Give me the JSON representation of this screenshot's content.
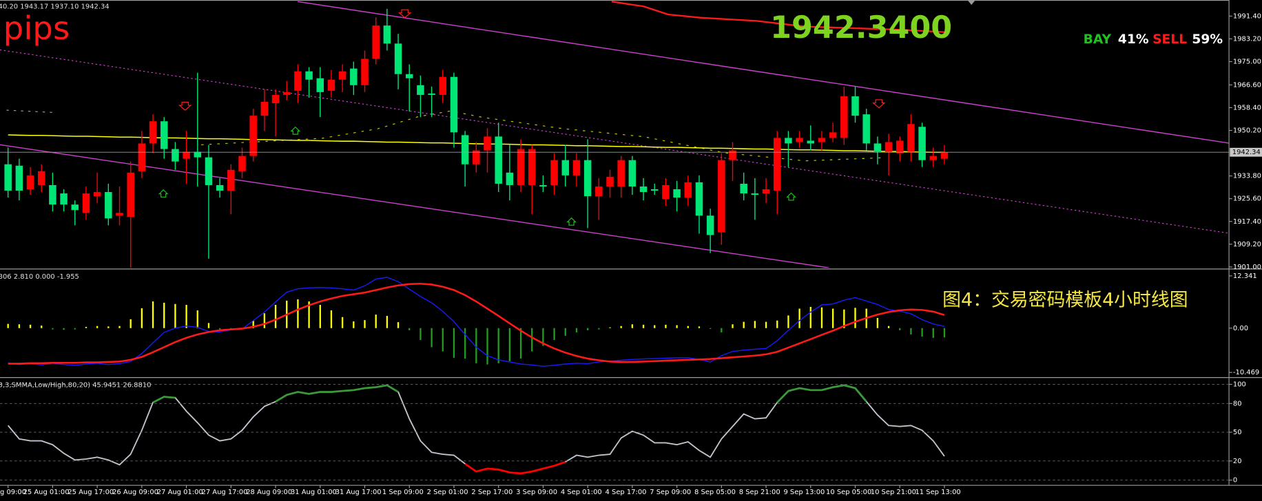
{
  "chart_data": [
    {
      "type": "candlestick",
      "title": "40.20 1943.17 1937.10 1942.34",
      "categories": [
        "g 09:00",
        null,
        null,
        null,
        "25 Aug 01:00",
        null,
        null,
        null,
        "25 Aug 17:00",
        null,
        null,
        null,
        "26 Aug 09:00",
        null,
        null,
        null,
        "27 Aug 01:00",
        null,
        null,
        null,
        "27 Aug 17:00",
        null,
        null,
        null,
        "28 Aug 09:00",
        null,
        null,
        null,
        "31 Aug 01:00",
        null,
        null,
        null,
        "31 Aug 17:00",
        null,
        null,
        null,
        "1 Sep 09:00",
        null,
        null,
        null,
        "2 Sep 01:00",
        null,
        null,
        null,
        "2 Sep 17:00",
        null,
        null,
        null,
        "3 Sep 09:00",
        null,
        null,
        null,
        "4 Sep 01:00",
        null,
        null,
        null,
        "4 Sep 17:00",
        null,
        null,
        null,
        "7 Sep 09:00",
        null,
        null,
        null,
        "8 Sep 05:00",
        null,
        null,
        null,
        "8 Sep 21:00",
        null,
        null,
        null,
        "9 Sep 13:00",
        null,
        null,
        null,
        "10 Sep 05:00",
        null,
        null,
        null,
        "10 Sep 21:00",
        null,
        null,
        null,
        "11 Sep 13:00"
      ],
      "open": [
        1938,
        1937.5,
        1929,
        1930.5,
        1930.5,
        1927.5,
        1923.5,
        1920.5,
        1926.5,
        1928,
        1919.5,
        1919,
        1935.5,
        1945.5,
        1953.5,
        1943.5,
        1940,
        1942.5,
        1940.5,
        1930.5,
        1928.5,
        1935.5,
        1941,
        1955.5,
        1960,
        1963,
        1964.5,
        1971.5,
        1969,
        1964.5,
        1968.5,
        1972.5,
        1966.5,
        1976,
        1988,
        1981.5,
        1970.5,
        1966.5,
        1963.5,
        1963,
        1969.5,
        1948.5,
        1938,
        1943,
        1948,
        1935,
        1930.5,
        1930.5,
        1930.5,
        1930.5,
        1939.5,
        1934,
        1939.5,
        1926.5,
        1930,
        1930,
        1939.5,
        1930,
        1929,
        1925.5,
        1929,
        1926,
        1931.5,
        1919.5,
        1913.5,
        1939.5,
        1931,
        1927.5,
        1927.5,
        1928.5,
        1947.5,
        1946,
        1946.5,
        1946,
        1947.5,
        1947.5,
        1962.5,
        1956,
        1945.5,
        1942.5,
        1942,
        1942.5,
        1951.5,
        1939.5,
        1940
      ],
      "high": [
        1944,
        1940,
        1937,
        1938,
        1935,
        1929,
        1925,
        1930,
        1935,
        1931,
        1930,
        1939,
        1950,
        1956,
        1955,
        1946,
        1950,
        1971,
        1945,
        1933,
        1938,
        1944,
        1958,
        1965,
        1965,
        1968,
        1974,
        1973,
        1973,
        1972,
        1974,
        1975,
        1979,
        1991,
        1994,
        1985,
        1974,
        1970,
        1966,
        1972,
        1971,
        1950,
        1946,
        1951,
        1953,
        1945,
        1947,
        1945,
        1934,
        1942,
        1945,
        1942,
        1947,
        1933,
        1936,
        1941,
        1941,
        1933,
        1931,
        1933,
        1932,
        1934,
        1934,
        1922,
        1942,
        1946,
        1935,
        1933,
        1933,
        1950,
        1950,
        1950,
        1952,
        1950,
        1953,
        1966,
        1966,
        1958,
        1948,
        1949,
        1948,
        1956,
        1953,
        1944,
        1945
      ],
      "low": [
        1926,
        1925,
        1927,
        1928,
        1921,
        1921,
        1916,
        1918,
        1924,
        1916,
        1916,
        1897,
        1933,
        1942,
        1940,
        1936,
        1931,
        1930,
        1904,
        1926,
        1920,
        1933,
        1939,
        1950,
        1948,
        1961,
        1960,
        1962,
        1955,
        1962,
        1964,
        1963,
        1964,
        1974,
        1979,
        1965,
        1957,
        1955,
        1955,
        1960,
        1944,
        1930,
        1935,
        1935,
        1928,
        1925,
        1928,
        1920,
        1928,
        1927,
        1930,
        1930,
        1915,
        1918,
        1926,
        1926,
        1927,
        1925,
        1927,
        1923,
        1921,
        1923,
        1913,
        1906,
        1909,
        1932,
        1925,
        1918,
        1924,
        1920,
        1937,
        1944,
        1943,
        1943,
        1946,
        1945,
        1953,
        1943,
        1938,
        1934,
        1939,
        1939,
        1937,
        1937,
        1938
      ],
      "close": [
        1928.5,
        1928.5,
        1934,
        1935.5,
        1923.5,
        1923.5,
        1921.5,
        1927.5,
        1928,
        1918.5,
        1920.5,
        1935,
        1945.5,
        1953.5,
        1943.5,
        1939,
        1942.5,
        1940.5,
        1930.5,
        1928.5,
        1936,
        1941,
        1955.5,
        1960.5,
        1963,
        1964,
        1971.5,
        1968.5,
        1964,
        1968.5,
        1971.5,
        1966.5,
        1976,
        1988,
        1981.5,
        1970.5,
        1969,
        1963,
        1963,
        1969.5,
        1949.5,
        1938,
        1943,
        1948,
        1931,
        1930.5,
        1943.5,
        1943.5,
        1930,
        1939.5,
        1934,
        1939.5,
        1926.5,
        1930,
        1933.5,
        1939.5,
        1930,
        1928,
        1928.5,
        1930.5,
        1926,
        1931.5,
        1919.5,
        1912.5,
        1939.5,
        1943,
        1927.5,
        1927,
        1929,
        1947.5,
        1945.5,
        1947.5,
        1945.5,
        1947.5,
        1949.5,
        1962.5,
        1955.5,
        1945.5,
        1942.5,
        1946,
        1946.5,
        1952.5,
        1939.5,
        1941,
        1942.34
      ],
      "up_color": "#ff0000",
      "down_color": "#00e676",
      "ma": {
        "color": "#ffff00",
        "values": [
          1948.6,
          1948.5,
          1948.4,
          1948.4,
          1948.3,
          1948.2,
          1948.1,
          1948.1,
          1948.0,
          1947.9,
          1947.8,
          1947.8,
          1947.7,
          1947.6,
          1947.5,
          1947.5,
          1947.4,
          1947.3,
          1947.2,
          1947.2,
          1947.1,
          1947.0,
          1946.9,
          1946.9,
          1946.8,
          1946.7,
          1946.6,
          1946.6,
          1946.5,
          1946.4,
          1946.3,
          1946.3,
          1946.2,
          1946.1,
          1946.0,
          1946.0,
          1945.9,
          1945.8,
          1945.7,
          1945.7,
          1945.6,
          1945.5,
          1945.4,
          1945.3,
          1945.3,
          1945.2,
          1945.1,
          1945.0,
          1945.0,
          1944.9,
          1944.8,
          1944.7,
          1944.7,
          1944.6,
          1944.5,
          1944.4,
          1944.4,
          1944.3,
          1944.2,
          1944.1,
          1944.1,
          1944.0,
          1943.9,
          1943.8,
          1943.8,
          1943.7,
          1943.6,
          1943.5,
          1943.5,
          1943.4,
          1943.3,
          1943.2,
          1943.2,
          1943.1,
          1943.0,
          1942.9,
          1942.9,
          1942.8,
          1942.7,
          1942.6,
          1942.6,
          1942.5,
          1942.4,
          1942.3,
          1942.3
        ]
      },
      "last_price": 1942.34,
      "ylim": [
        1900.7,
        1997.2
      ],
      "yticks": [
        {
          "value": 1991.4,
          "label": "1991.40"
        },
        {
          "value": 1983.2,
          "label": "1983.20"
        },
        {
          "value": 1975,
          "label": "1975.00"
        },
        {
          "value": 1966.6,
          "label": "1966.60"
        },
        {
          "value": 1958.4,
          "label": "1958.40"
        },
        {
          "value": 1950.2,
          "label": "1950.20"
        },
        {
          "value": 1933.8,
          "label": "1933.80"
        },
        {
          "value": 1925.6,
          "label": "1925.60"
        },
        {
          "value": 1917.4,
          "label": "1917.40"
        },
        {
          "value": 1909.2,
          "label": "1909.20"
        },
        {
          "value": 1901,
          "label": "1901.00"
        }
      ],
      "annotations": {
        "pips": "pips",
        "price": "1942.3400",
        "buy_label": "BAY",
        "buy_pct": "41%",
        "sell_label": "SELL",
        "sell_pct": "59%"
      }
    },
    {
      "type": "macd",
      "title": "806 2.810 0.000 -1.955",
      "caption": "图4：交易密码模板4小时线图",
      "histogram": {
        "pos_color": "#ffff00",
        "neg_color": "#1f9d1f",
        "values": [
          1.0,
          0.9,
          0.8,
          0.6,
          -0.3,
          -0.4,
          -0.3,
          0.3,
          0.5,
          0.4,
          0.5,
          2.1,
          4.7,
          6.3,
          6.0,
          5.7,
          5.5,
          4.2,
          1.2,
          -0.3,
          -0.5,
          -0.2,
          1.8,
          3.5,
          5.5,
          6.5,
          6.8,
          6.3,
          5.5,
          4.2,
          2.6,
          1.6,
          1.9,
          3.2,
          2.9,
          1.4,
          -0.5,
          -2.8,
          -4.5,
          -5.5,
          -7.0,
          -7.2,
          -8.3,
          -8.6,
          -8.3,
          -7.8,
          -7.2,
          -5.5,
          -4.2,
          -2.8,
          -1.8,
          -1.0,
          -0.5,
          -0.3,
          0.2,
          0.5,
          0.9,
          0.8,
          0.7,
          0.8,
          0.7,
          0.5,
          0.4,
          -0.2,
          -1.0,
          0.9,
          1.5,
          1.7,
          1.5,
          1.8,
          3.0,
          4.6,
          5.0,
          4.9,
          4.6,
          4.4,
          4.8,
          4.6,
          2.4,
          0.5,
          -0.5,
          -1.5,
          -2.0,
          -2.3,
          -2.2
        ]
      },
      "lines": [
        {
          "color": "#1a1aff",
          "values": [
            -8.2,
            -8.6,
            -8.4,
            -8.7,
            -8.3,
            -8.6,
            -8.8,
            -8.5,
            -8.3,
            -8.6,
            -8.4,
            -7.9,
            -6.0,
            -3.5,
            -1.0,
            0.0,
            0.5,
            0.2,
            -0.8,
            -0.9,
            -0.4,
            -0.2,
            1.8,
            3.8,
            6.2,
            8.5,
            9.3,
            9.5,
            9.6,
            9.5,
            9.3,
            9.0,
            10.0,
            11.6,
            12.0,
            11.0,
            9.2,
            7.5,
            6.0,
            4.0,
            1.5,
            -1.5,
            -4.5,
            -6.5,
            -7.5,
            -8.0,
            -8.5,
            -8.7,
            -9.0,
            -8.8,
            -8.5,
            -8.3,
            -8.4,
            -8.0,
            -7.8,
            -7.6,
            -7.4,
            -7.3,
            -7.2,
            -7.1,
            -7.0,
            -7.0,
            -7.4,
            -8.0,
            -6.5,
            -5.5,
            -5.2,
            -5.0,
            -4.8,
            -3.0,
            -0.5,
            1.8,
            3.8,
            5.5,
            5.7,
            6.6,
            7.2,
            6.4,
            5.6,
            4.4,
            4.0,
            3.4,
            2.0,
            1.0,
            0.4
          ]
        },
        {
          "color": "#ff1a1a",
          "values": [
            -8.4,
            -8.4,
            -8.3,
            -8.3,
            -8.2,
            -8.2,
            -8.2,
            -8.1,
            -8.1,
            -8.0,
            -7.9,
            -7.5,
            -6.8,
            -5.7,
            -4.5,
            -3.3,
            -2.3,
            -1.5,
            -0.9,
            -0.5,
            -0.3,
            -0.1,
            0.3,
            1.0,
            2.0,
            3.2,
            4.4,
            5.4,
            6.3,
            7.0,
            7.6,
            8.0,
            8.4,
            9.0,
            9.6,
            10.1,
            10.4,
            10.5,
            10.3,
            9.8,
            9.0,
            7.8,
            6.3,
            4.6,
            2.9,
            1.1,
            -0.6,
            -2.2,
            -3.6,
            -4.8,
            -5.8,
            -6.6,
            -7.2,
            -7.6,
            -7.9,
            -8.0,
            -8.0,
            -7.9,
            -7.8,
            -7.7,
            -7.6,
            -7.5,
            -7.4,
            -7.3,
            -7.1,
            -6.9,
            -6.7,
            -6.5,
            -6.2,
            -5.6,
            -4.6,
            -3.6,
            -2.6,
            -1.6,
            -0.6,
            0.5,
            1.5,
            2.4,
            3.2,
            3.8,
            4.2,
            4.4,
            4.3,
            3.9,
            3.1
          ]
        }
      ],
      "ylim": [
        -11.4,
        13.5
      ],
      "yticks": [
        12.341,
        {
          "value": 0,
          "label": "0.00"
        },
        -10.469
      ]
    },
    {
      "type": "stochastic",
      "title": "3,3,SMMA,Low/High,80,20) 45.9451 26.8810",
      "values": [
        57,
        43,
        41,
        41,
        37,
        28,
        21,
        22,
        24,
        21,
        16,
        27,
        52,
        81,
        87,
        86,
        72,
        60,
        47,
        41,
        43,
        52,
        66,
        77,
        82,
        89,
        92,
        90,
        92,
        92,
        93,
        94,
        96,
        97,
        99,
        92,
        64,
        41,
        29,
        27,
        26,
        17,
        9,
        12,
        11,
        8,
        7,
        9,
        12,
        15,
        19,
        26,
        24,
        26,
        27,
        44,
        51,
        47,
        39,
        39,
        37,
        40,
        31,
        24,
        43,
        56,
        69,
        64,
        65,
        81,
        93,
        96,
        94,
        94,
        97,
        99,
        96,
        82,
        68,
        57,
        56,
        57,
        52,
        41,
        25
      ],
      "color": "#c0c4cc",
      "upper_color": "#3a9a3a",
      "lower_color": "#ff0000",
      "upper_level": 80,
      "lower_level": 20,
      "ylim": [
        -5,
        105.8
      ],
      "yticks": [
        100,
        80,
        50,
        20,
        0
      ],
      "grid": true
    }
  ]
}
